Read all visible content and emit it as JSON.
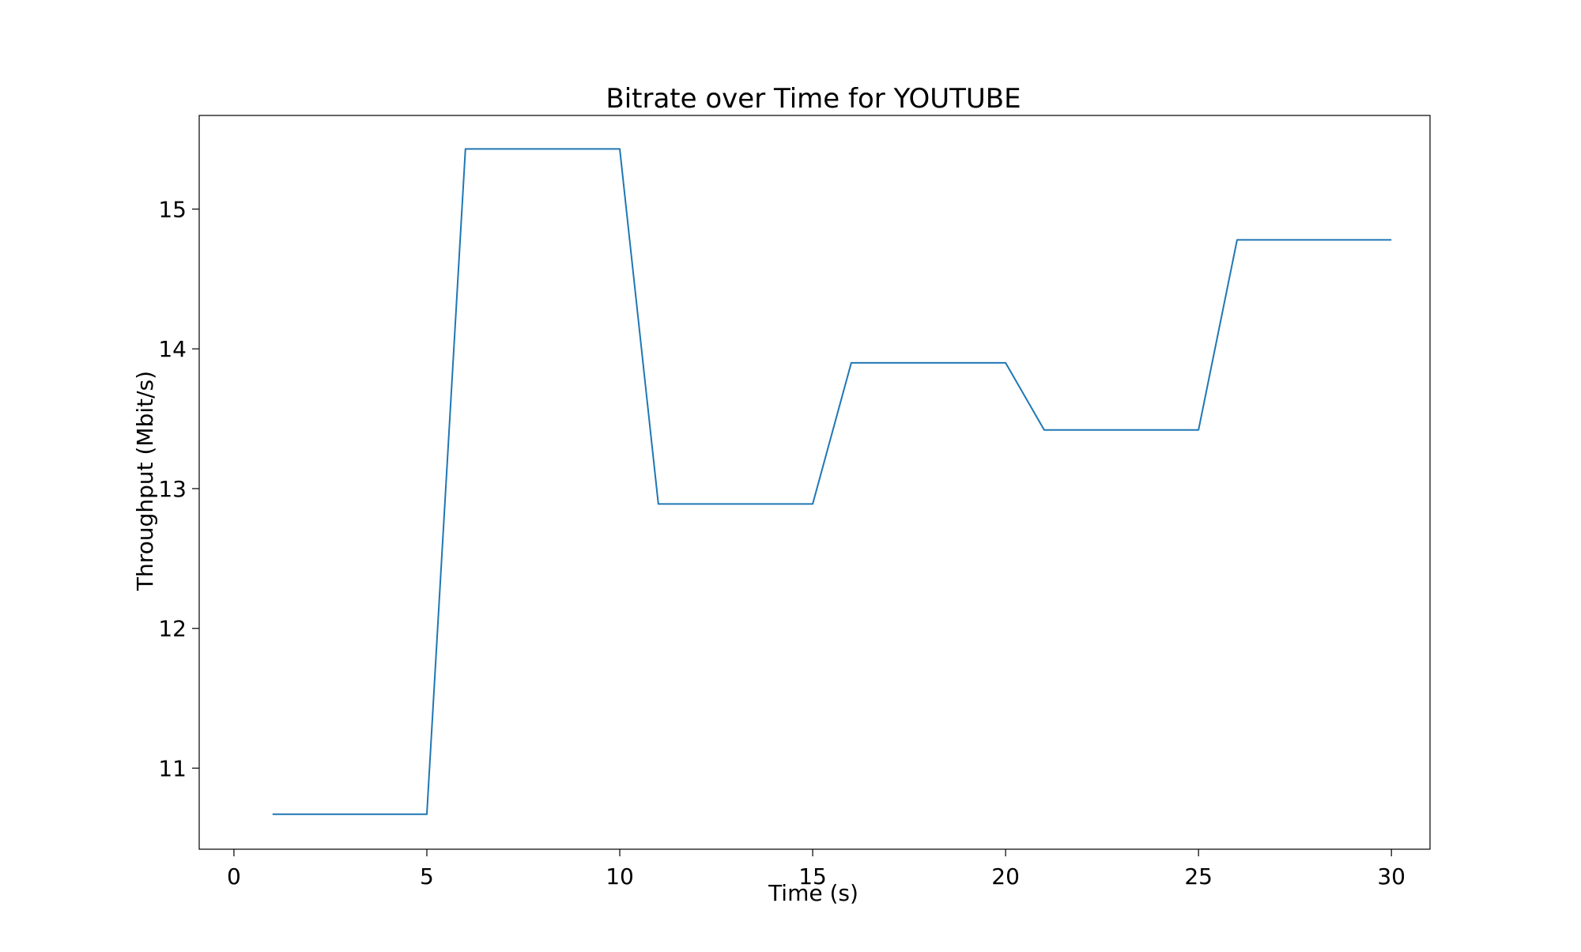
{
  "chart_data": {
    "type": "line",
    "title": "Bitrate over Time for YOUTUBE",
    "xlabel": "Time (s)",
    "ylabel": "Throughput (Mbit/s)",
    "xlim": [
      -0.9,
      31.0
    ],
    "ylim": [
      10.42,
      15.67
    ],
    "xticks": [
      0,
      5,
      10,
      15,
      20,
      25,
      30
    ],
    "yticks": [
      11,
      12,
      13,
      14,
      15
    ],
    "grid": false,
    "series": [
      {
        "color": "#1f77b4",
        "x": [
          1,
          2,
          3,
          4,
          5,
          6,
          7,
          8,
          9,
          10,
          11,
          12,
          13,
          14,
          15,
          16,
          17,
          18,
          19,
          20,
          21,
          22,
          23,
          24,
          25,
          26,
          27,
          28,
          29,
          30
        ],
        "y": [
          10.67,
          10.67,
          10.67,
          10.67,
          10.67,
          15.43,
          15.43,
          15.43,
          15.43,
          15.43,
          12.89,
          12.89,
          12.89,
          12.89,
          12.89,
          13.9,
          13.9,
          13.9,
          13.9,
          13.9,
          13.42,
          13.42,
          13.42,
          13.42,
          13.42,
          14.78,
          14.78,
          14.78,
          14.78,
          14.78
        ]
      }
    ]
  }
}
